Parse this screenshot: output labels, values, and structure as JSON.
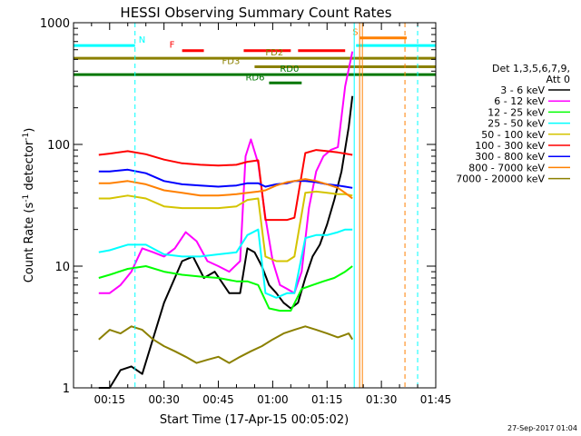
{
  "chart_data": {
    "type": "line",
    "title": "HESSI Observing Summary Count Rates",
    "xlabel": "Start Time (17-Apr-15 00:05:02)",
    "ylabel_prefix": "Count Rate (s",
    "ylabel_sup": "-1",
    "ylabel_mid": " detector",
    "ylabel_suffix": ")",
    "footer": "27-Sep-2017 01:04",
    "y_scale": "log",
    "ylim": [
      1,
      1000
    ],
    "xlim": [
      "00:05:02",
      "01:45"
    ],
    "x_ticks": [
      "00:15",
      "00:30",
      "00:45",
      "01:00",
      "01:15",
      "01:30",
      "01:45"
    ],
    "y_ticks": [
      "1",
      "10",
      "100",
      "1000"
    ],
    "legend_header": [
      "Det 1,3,5,6,7,9,",
      "Att 0"
    ],
    "legend": [
      {
        "name": "3 - 6 keV",
        "color": "#000000"
      },
      {
        "name": "6 - 12 keV",
        "color": "#ff00ff"
      },
      {
        "name": "12 - 25 keV",
        "color": "#00ff00"
      },
      {
        "name": "25 - 50 keV",
        "color": "#00ffff"
      },
      {
        "name": "50 - 100 keV",
        "color": "#d4c400"
      },
      {
        "name": "100 - 300 keV",
        "color": "#ff0000"
      },
      {
        "name": "300 - 800 keV",
        "color": "#0000ff"
      },
      {
        "name": "800 - 7000 keV",
        "color": "#ff8000"
      },
      {
        "name": "7000 - 20000 keV",
        "color": "#8b8000"
      }
    ],
    "flag_bars": [
      {
        "label": "N",
        "color": "#00ffff",
        "y": 650,
        "segments": [
          [
            "00:05:02",
            "00:22:00"
          ],
          [
            "01:23:00",
            "01:45:00"
          ]
        ],
        "label_at": "00:23:00"
      },
      {
        "label": "S",
        "color": "#ff8000",
        "y": 750,
        "segments": [
          [
            "01:24:00",
            "01:37:00"
          ]
        ],
        "label_at": "01:22:00"
      },
      {
        "label": "F",
        "color": "#ff0000",
        "y": 590,
        "segments": [
          [
            "00:35:00",
            "00:41:00"
          ],
          [
            "00:52:00",
            "01:05:00"
          ],
          [
            "01:07:00",
            "01:20:00"
          ]
        ],
        "label_at": "00:31:30"
      },
      {
        "label": "FD2",
        "color": "#8b8000",
        "y": 510,
        "segments": [
          [
            "00:05:02",
            "01:45:00"
          ]
        ],
        "label_at": "00:58:00"
      },
      {
        "label": "FD3",
        "color": "#8b8000",
        "y": 435,
        "segments": [
          [
            "00:55:00",
            "01:45:00"
          ]
        ],
        "label_at": "00:46:00"
      },
      {
        "label": "RD0",
        "color": "#007700",
        "y": 375,
        "segments": [
          [
            "00:05:02",
            "01:45:00"
          ]
        ],
        "label_at": "01:02:00"
      },
      {
        "label": "RD6",
        "color": "#007700",
        "y": 320,
        "segments": [
          [
            "00:59:00",
            "01:08:00"
          ]
        ],
        "label_at": "00:52:30"
      }
    ],
    "vlines": [
      {
        "time": "00:22:00",
        "color": "#00ffff",
        "style": "dashed"
      },
      {
        "time": "01:22:30",
        "color": "#00ffff",
        "style": "solid"
      },
      {
        "time": "01:24:00",
        "color": "#ff8000",
        "style": "solid"
      },
      {
        "time": "01:24:45",
        "color": "#ff8000",
        "style": "solid"
      },
      {
        "time": "01:36:30",
        "color": "#ff8000",
        "style": "dashed"
      },
      {
        "time": "01:40:00",
        "color": "#00ffff",
        "style": "dashed"
      }
    ],
    "series": [
      {
        "name": "3 - 6 keV",
        "color": "#000000",
        "x": [
          "00:12:00",
          "00:15:00",
          "00:18:00",
          "00:21:00",
          "00:24:00",
          "00:30:00",
          "00:35:00",
          "00:38:00",
          "00:41:00",
          "00:44:00",
          "00:48:00",
          "00:51:00",
          "00:53:00",
          "00:55:00",
          "00:57:00",
          "00:59:00",
          "01:01:00",
          "01:03:00",
          "01:05:00",
          "01:07:00",
          "01:09:00",
          "01:11:00",
          "01:13:00",
          "01:15:00",
          "01:17:00",
          "01:19:00",
          "01:21:00",
          "01:22:00"
        ],
        "y": [
          1,
          1,
          1.4,
          1.5,
          1.3,
          5,
          11,
          12,
          8,
          9,
          6,
          6,
          14,
          13,
          10,
          7,
          6,
          5,
          4.5,
          5,
          8,
          12,
          15,
          22,
          35,
          60,
          140,
          250
        ]
      },
      {
        "name": "6 - 12 keV",
        "color": "#ff00ff",
        "x": [
          "00:12:00",
          "00:15:00",
          "00:18:00",
          "00:21:00",
          "00:24:00",
          "00:27:00",
          "00:30:00",
          "00:33:00",
          "00:36:00",
          "00:39:00",
          "00:42:00",
          "00:45:00",
          "00:48:00",
          "00:51:00",
          "00:52:30",
          "00:54:00",
          "00:56:00",
          "00:58:00",
          "01:00:00",
          "01:02:00",
          "01:04:00",
          "01:06:00",
          "01:08:00",
          "01:10:00",
          "01:12:00",
          "01:14:00",
          "01:16:00",
          "01:18:00",
          "01:20:00",
          "01:22:00"
        ],
        "y": [
          6,
          6,
          7,
          9,
          14,
          13,
          12,
          14,
          19,
          16,
          11,
          10,
          9,
          11,
          80,
          110,
          70,
          25,
          11,
          7,
          6.5,
          6,
          9,
          30,
          60,
          80,
          90,
          95,
          300,
          580
        ]
      },
      {
        "name": "12 - 25 keV",
        "color": "#00ff00",
        "x": [
          "00:12:00",
          "00:15:00",
          "00:20:00",
          "00:25:00",
          "00:30:00",
          "00:35:00",
          "00:40:00",
          "00:45:00",
          "00:50:00",
          "00:53:00",
          "00:56:00",
          "00:59:00",
          "01:02:00",
          "01:05:00",
          "01:08:00",
          "01:11:00",
          "01:14:00",
          "01:17:00",
          "01:20:00",
          "01:22:00"
        ],
        "y": [
          8,
          8.5,
          9.5,
          10,
          9,
          8.5,
          8.2,
          8,
          7.5,
          7.5,
          7,
          4.5,
          4.3,
          4.3,
          6.5,
          7,
          7.5,
          8,
          9,
          10
        ]
      },
      {
        "name": "25 - 50 keV",
        "color": "#00ffff",
        "x": [
          "00:12:00",
          "00:15:00",
          "00:20:00",
          "00:25:00",
          "00:30:00",
          "00:35:00",
          "00:40:00",
          "00:45:00",
          "00:50:00",
          "00:53:00",
          "00:56:00",
          "00:58:00",
          "01:01:00",
          "01:04:00",
          "01:06:00",
          "01:09:00",
          "01:12:00",
          "01:15:00",
          "01:18:00",
          "01:20:00",
          "01:22:00"
        ],
        "y": [
          13,
          13.5,
          15,
          15,
          12.5,
          12,
          12,
          12.5,
          13,
          18,
          20,
          6,
          5.5,
          6,
          6,
          17,
          18,
          18,
          19,
          20,
          20
        ]
      },
      {
        "name": "50 - 100 keV",
        "color": "#d4c400",
        "x": [
          "00:12:00",
          "00:15:00",
          "00:20:00",
          "00:25:00",
          "00:30:00",
          "00:35:00",
          "00:40:00",
          "00:45:00",
          "00:50:00",
          "00:53:00",
          "00:56:00",
          "00:58:00",
          "01:01:00",
          "01:04:00",
          "01:06:00",
          "01:09:00",
          "01:12:00",
          "01:15:00",
          "01:18:00",
          "01:20:00",
          "01:22:00"
        ],
        "y": [
          36,
          36,
          38,
          36,
          31,
          30,
          30,
          30,
          31,
          35,
          36,
          12,
          11,
          11,
          12,
          40,
          41,
          40,
          39,
          39,
          38
        ]
      },
      {
        "name": "100 - 300 keV",
        "color": "#ff0000",
        "x": [
          "00:12:00",
          "00:15:00",
          "00:20:00",
          "00:25:00",
          "00:30:00",
          "00:35:00",
          "00:40:00",
          "00:45:00",
          "00:50:00",
          "00:53:00",
          "00:56:00",
          "00:58:00",
          "01:01:00",
          "01:04:00",
          "01:06:00",
          "01:09:00",
          "01:12:00",
          "01:15:00",
          "01:18:00",
          "01:20:00",
          "01:22:00"
        ],
        "y": [
          82,
          84,
          88,
          83,
          75,
          70,
          68,
          67,
          68,
          72,
          74,
          24,
          24,
          24,
          25,
          85,
          90,
          88,
          86,
          84,
          82
        ]
      },
      {
        "name": "300 - 800 keV",
        "color": "#0000ff",
        "x": [
          "00:12:00",
          "00:15:00",
          "00:20:00",
          "00:25:00",
          "00:30:00",
          "00:35:00",
          "00:40:00",
          "00:45:00",
          "00:50:00",
          "00:53:00",
          "00:56:00",
          "00:58:00",
          "01:01:00",
          "01:04:00",
          "01:06:00",
          "01:09:00",
          "01:12:00",
          "01:15:00",
          "01:18:00",
          "01:20:00",
          "01:22:00"
        ],
        "y": [
          60,
          60,
          62,
          58,
          50,
          47,
          46,
          45,
          46,
          48,
          48,
          45,
          47,
          48,
          50,
          50,
          49,
          47,
          46,
          45,
          44
        ]
      },
      {
        "name": "800 - 7000 keV",
        "color": "#ff8000",
        "x": [
          "00:12:00",
          "00:15:00",
          "00:20:00",
          "00:25:00",
          "00:30:00",
          "00:35:00",
          "00:40:00",
          "00:45:00",
          "00:50:00",
          "00:53:00",
          "00:56:00",
          "00:58:00",
          "01:01:00",
          "01:04:00",
          "01:06:00",
          "01:09:00",
          "01:12:00",
          "01:15:00",
          "01:18:00",
          "01:20:00",
          "01:22:00"
        ],
        "y": [
          48,
          48,
          50,
          47,
          42,
          40,
          38,
          38,
          39,
          40,
          41,
          42,
          46,
          49,
          50,
          52,
          50,
          47,
          44,
          40,
          36
        ]
      },
      {
        "name": "7000 - 20000 keV",
        "color": "#8b8000",
        "x": [
          "00:12:00",
          "00:15:00",
          "00:18:00",
          "00:21:00",
          "00:24:00",
          "00:27:00",
          "00:30:00",
          "00:33:00",
          "00:36:00",
          "00:39:00",
          "00:42:00",
          "00:45:00",
          "00:48:00",
          "00:51:00",
          "00:54:00",
          "00:57:00",
          "01:00:00",
          "01:03:00",
          "01:06:00",
          "01:09:00",
          "01:12:00",
          "01:15:00",
          "01:18:00",
          "01:21:00",
          "01:22:00"
        ],
        "y": [
          2.5,
          3,
          2.8,
          3.2,
          3,
          2.5,
          2.2,
          2,
          1.8,
          1.6,
          1.7,
          1.8,
          1.6,
          1.8,
          2,
          2.2,
          2.5,
          2.8,
          3,
          3.2,
          3,
          2.8,
          2.6,
          2.8,
          2.5
        ]
      }
    ]
  }
}
